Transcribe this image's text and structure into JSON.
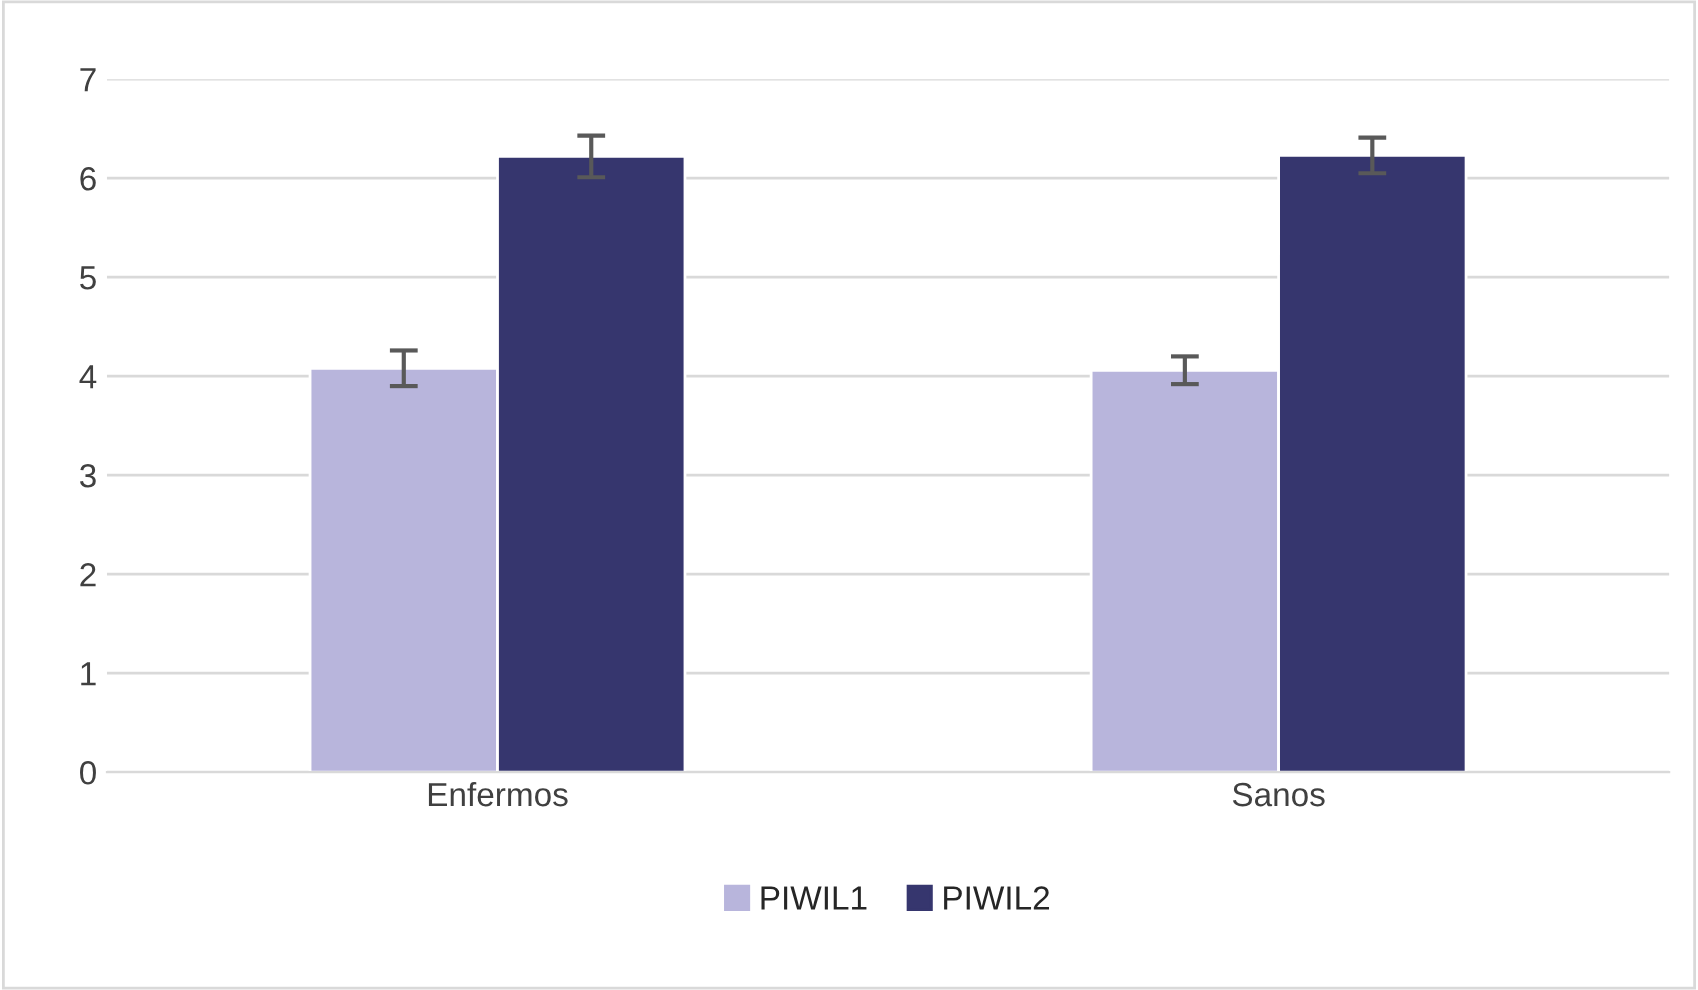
{
  "chart_data": {
    "type": "bar",
    "categories": [
      "Enfermos",
      "Sanos"
    ],
    "series": [
      {
        "name": "PIWIL1",
        "color": "#b8b5dc",
        "values": [
          4.08,
          4.06
        ],
        "errors": [
          0.18,
          0.14
        ]
      },
      {
        "name": "PIWIL2",
        "color": "#36366e",
        "values": [
          6.22,
          6.23
        ],
        "errors": [
          0.21,
          0.18
        ]
      }
    ],
    "ylim": [
      0,
      7
    ],
    "yticks": [
      0,
      1,
      2,
      3,
      4,
      5,
      6,
      7
    ],
    "grid": "y",
    "legend": "bottom"
  }
}
